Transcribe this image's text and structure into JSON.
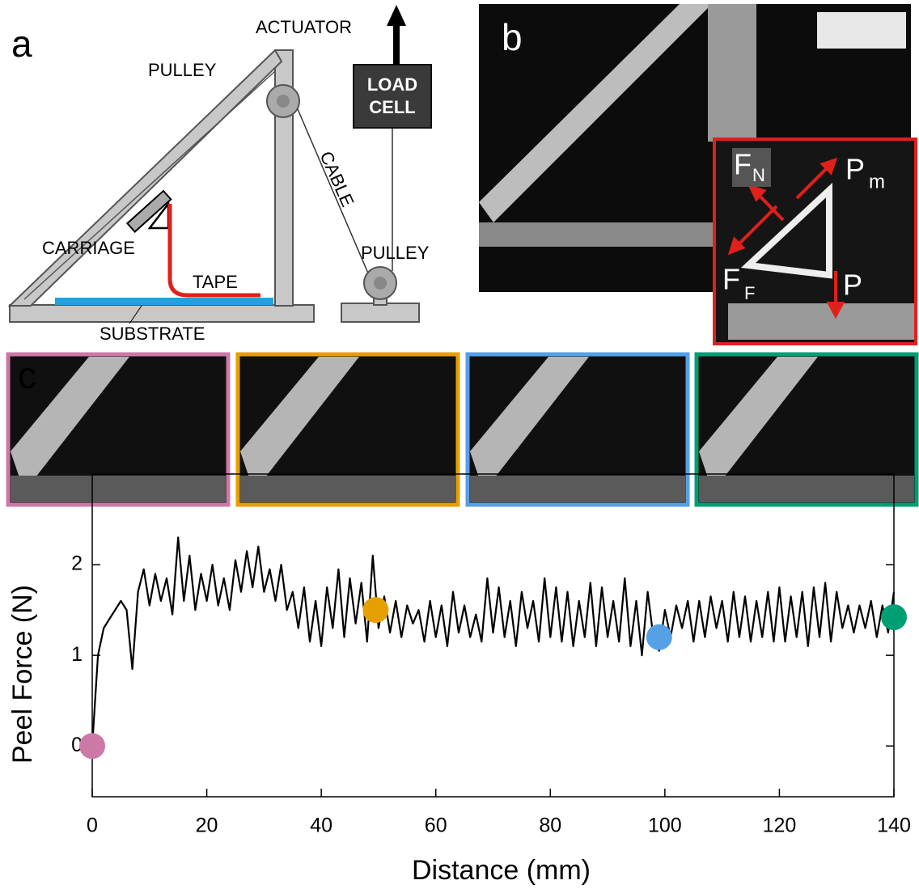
{
  "diagram": {
    "label": "a",
    "actuator": "ACTUATOR",
    "pulley_top": "PULLEY",
    "load": "LOAD",
    "cell": "CELL",
    "cable": "CABLE",
    "carriage": "CARRIAGE",
    "tape": "TAPE",
    "pulley_bottom": "PULLEY",
    "substrate": "SUBSTRATE"
  },
  "photo": {
    "label": "b",
    "fn": "F",
    "fn_sub": "N",
    "pm": "P",
    "pm_sub": "m",
    "ff": "F",
    "ff_sub": "F",
    "p": "P"
  },
  "snapshots": {
    "label": "c"
  },
  "chart_data": {
    "type": "line",
    "xlabel": "Distance (mm)",
    "ylabel": "Peel Force (N)",
    "xlim": [
      0,
      140
    ],
    "ylim": [
      -0.56,
      3.0
    ],
    "xticks": [
      0,
      20,
      40,
      60,
      80,
      100,
      120,
      140
    ],
    "yticks": [
      0,
      1,
      2
    ],
    "x": [
      0,
      1,
      2,
      3,
      4,
      5,
      6,
      7,
      8,
      9,
      10,
      11,
      12,
      13,
      14,
      15,
      16,
      17,
      18,
      19,
      20,
      21,
      22,
      23,
      24,
      25,
      26,
      27,
      28,
      29,
      30,
      31,
      32,
      33,
      34,
      35,
      36,
      37,
      38,
      39,
      40,
      41,
      42,
      43,
      44,
      45,
      46,
      47,
      48,
      49,
      50,
      51,
      52,
      53,
      54,
      55,
      56,
      57,
      58,
      59,
      60,
      61,
      62,
      63,
      64,
      65,
      66,
      67,
      68,
      69,
      70,
      71,
      72,
      73,
      74,
      75,
      76,
      77,
      78,
      79,
      80,
      81,
      82,
      83,
      84,
      85,
      86,
      87,
      88,
      89,
      90,
      91,
      92,
      93,
      94,
      95,
      96,
      97,
      98,
      99,
      100,
      101,
      102,
      103,
      104,
      105,
      106,
      107,
      108,
      109,
      110,
      111,
      112,
      113,
      114,
      115,
      116,
      117,
      118,
      119,
      120,
      121,
      122,
      123,
      124,
      125,
      126,
      127,
      128,
      129,
      130,
      131,
      132,
      133,
      134,
      135,
      136,
      137,
      138,
      139,
      140
    ],
    "series": [
      {
        "color": "#000000",
        "values": [
          0,
          1.0,
          1.3,
          1.4,
          1.5,
          1.6,
          1.5,
          0.85,
          1.7,
          1.95,
          1.55,
          1.9,
          1.6,
          1.85,
          1.45,
          2.3,
          1.6,
          2.1,
          1.5,
          1.9,
          1.6,
          2.0,
          1.55,
          1.85,
          1.5,
          2.05,
          1.7,
          2.15,
          1.75,
          2.2,
          1.7,
          1.95,
          1.6,
          2.0,
          1.5,
          1.7,
          1.3,
          1.75,
          1.15,
          1.6,
          1.1,
          1.75,
          1.3,
          1.95,
          1.2,
          1.85,
          1.35,
          1.8,
          1.15,
          2.1,
          1.3,
          1.65,
          1.25,
          1.6,
          1.2,
          1.55,
          1.35,
          1.5,
          1.15,
          1.6,
          1.2,
          1.55,
          1.1,
          1.7,
          1.25,
          1.55,
          1.2,
          1.45,
          1.15,
          1.85,
          1.25,
          1.75,
          1.2,
          1.6,
          1.1,
          1.7,
          1.3,
          1.6,
          1.15,
          1.85,
          1.2,
          1.75,
          1.15,
          1.7,
          1.1,
          1.6,
          1.2,
          1.8,
          1.1,
          1.75,
          1.2,
          1.6,
          1.15,
          1.85,
          1.1,
          1.6,
          1.0,
          1.7,
          1.2,
          1.05,
          1.5,
          1.2,
          1.55,
          1.3,
          1.6,
          1.15,
          1.6,
          1.2,
          1.65,
          1.3,
          1.6,
          1.15,
          1.7,
          1.2,
          1.65,
          1.15,
          1.6,
          1.2,
          1.7,
          1.15,
          1.75,
          1.15,
          1.65,
          1.2,
          1.7,
          1.1,
          1.75,
          1.2,
          1.8,
          1.15,
          1.7,
          1.3,
          1.55,
          1.25,
          1.55,
          1.3,
          1.6,
          1.2,
          1.55,
          1.25,
          1.7
        ]
      }
    ],
    "markers": [
      {
        "color": "#cc79a7",
        "x": 0,
        "y": 0
      },
      {
        "color": "#e69f00",
        "x": 49.5,
        "y": 1.5
      },
      {
        "color": "#56a0e6",
        "x": 99,
        "y": 1.2
      },
      {
        "color": "#009e73",
        "x": 140,
        "y": 1.42
      }
    ]
  }
}
